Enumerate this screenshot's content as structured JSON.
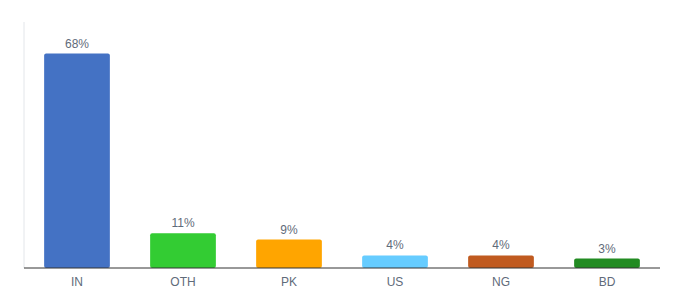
{
  "chart_data": {
    "type": "bar",
    "categories": [
      "IN",
      "OTH",
      "PK",
      "US",
      "NG",
      "BD"
    ],
    "values": [
      68,
      11,
      9,
      4,
      4,
      3
    ],
    "value_labels": [
      "68%",
      "11%",
      "9%",
      "4%",
      "4%",
      "3%"
    ],
    "data_labels": true,
    "colors": [
      "#4472C4",
      "#33CC33",
      "#FFA500",
      "#66CCFF",
      "#C05A1F",
      "#228B22"
    ],
    "ylim": [
      0,
      78
    ],
    "tick_labels": "x",
    "grid": false
  }
}
